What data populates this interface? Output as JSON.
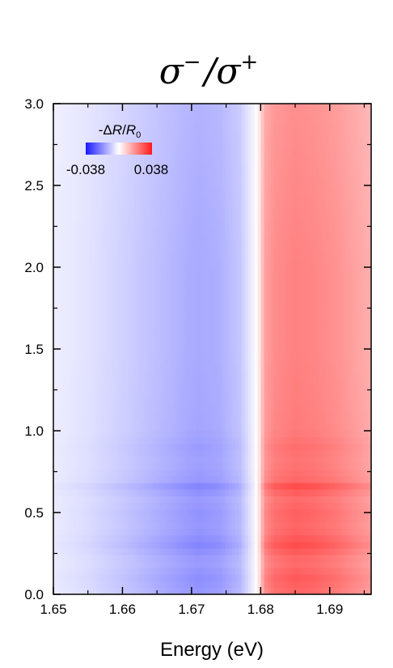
{
  "chart_data": {
    "type": "heatmap",
    "title": {
      "base1": "σ",
      "sup1": "−",
      "slash": "/",
      "base2": "σ",
      "sup2": "+"
    },
    "xlabel": "Energy (eV)",
    "ylabel": "",
    "xlim": [
      1.65,
      1.696
    ],
    "ylim": [
      0.0,
      3.0
    ],
    "x_ticks": [
      {
        "value": 1.65,
        "label": "1.65"
      },
      {
        "value": 1.66,
        "label": "1.66"
      },
      {
        "value": 1.67,
        "label": "1.67"
      },
      {
        "value": 1.68,
        "label": "1.68"
      },
      {
        "value": 1.69,
        "label": "1.69"
      }
    ],
    "y_ticks": [
      {
        "value": 0.0,
        "label": "0.0"
      },
      {
        "value": 0.5,
        "label": "0.5"
      },
      {
        "value": 1.0,
        "label": "1.0"
      },
      {
        "value": 1.5,
        "label": "1.5"
      },
      {
        "value": 2.0,
        "label": "2.0"
      },
      {
        "value": 2.5,
        "label": "2.5"
      },
      {
        "value": 3.0,
        "label": "3.0"
      }
    ],
    "colorbar": {
      "label_prefix": "-Δ",
      "label_R": "R",
      "label_slash": "/",
      "label_R0": "R",
      "label_sub": "0",
      "min": -0.038,
      "max": 0.038,
      "min_label": "-0.038",
      "max_label": "0.038",
      "color_min": "#1a1aff",
      "color_mid": "#ffffff",
      "color_max": "#ff1a1a"
    },
    "spectrum": {
      "energy": [
        1.65,
        1.655,
        1.66,
        1.663,
        1.666,
        1.669,
        1.671,
        1.674,
        1.677,
        1.679,
        1.68,
        1.6805,
        1.682,
        1.685,
        1.688,
        1.691,
        1.694,
        1.696
      ],
      "value": [
        -0.003,
        -0.005,
        -0.008,
        -0.01,
        -0.012,
        -0.014,
        -0.015,
        -0.014,
        -0.01,
        -0.002,
        0.006,
        0.016,
        0.02,
        0.022,
        0.021,
        0.019,
        0.016,
        0.014
      ]
    },
    "delay_modulation": {
      "delay": [
        0.0,
        0.1,
        0.2,
        0.3,
        0.4,
        0.5,
        0.6,
        0.65,
        0.7,
        0.8,
        0.9,
        1.0,
        1.2,
        1.5,
        2.0,
        2.5,
        3.0
      ],
      "factor": [
        1.15,
        1.25,
        1.1,
        1.35,
        1.15,
        1.2,
        1.1,
        1.4,
        1.15,
        1.05,
        1.1,
        1.0,
        0.98,
        0.95,
        0.95,
        0.9,
        0.85
      ]
    }
  }
}
